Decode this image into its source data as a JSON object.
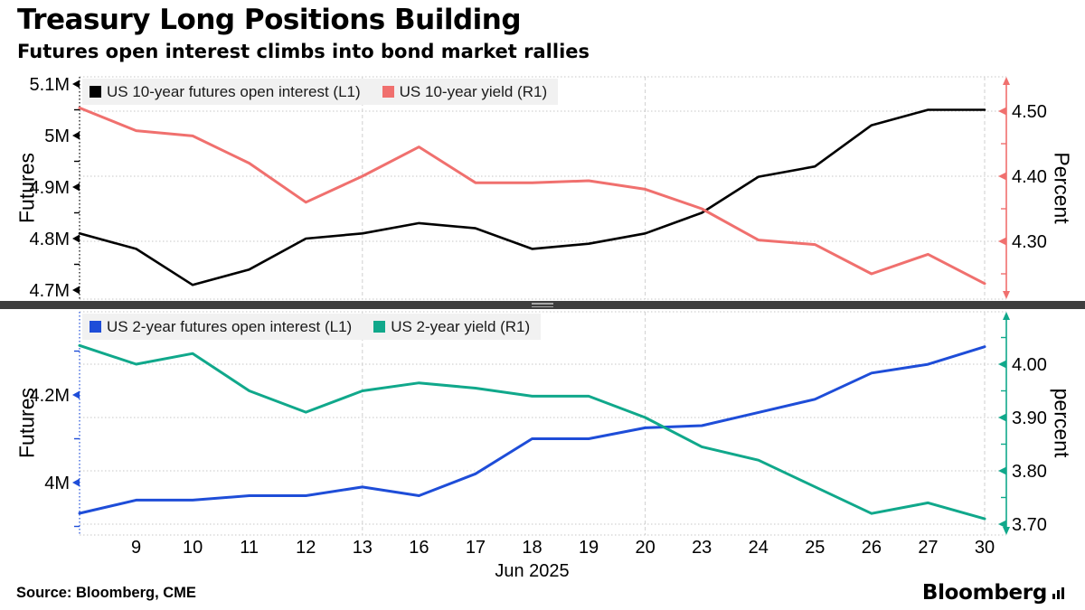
{
  "header": {
    "title": "Treasury Long Positions Building",
    "subtitle": "Futures open interest climbs into bond market rallies"
  },
  "footer": {
    "source": "Source: Bloomberg, CME",
    "brand": "Bloomberg"
  },
  "colors": {
    "oi_10y": "#000000",
    "yield_10y": "#f0706e",
    "oi_2y": "#1e4dd8",
    "yield_2y": "#10a88b",
    "legend_bg": "#f1f1f1",
    "grid": "#c7c7c7",
    "divider": "#3e3e3e"
  },
  "chart_data": [
    {
      "type": "line",
      "panel": "top",
      "x": [
        6,
        9,
        10,
        11,
        12,
        13,
        16,
        17,
        18,
        19,
        20,
        23,
        24,
        25,
        26,
        27,
        30
      ],
      "series": [
        {
          "name": "US 10-year futures open interest (L1)",
          "axis": "L1",
          "color": "#000000",
          "values": [
            4.81,
            4.78,
            4.71,
            4.74,
            4.8,
            4.81,
            4.83,
            4.82,
            4.78,
            4.79,
            4.81,
            4.85,
            4.92,
            4.94,
            5.02,
            5.05,
            5.05
          ]
        },
        {
          "name": "US 10-year yield (R1)",
          "axis": "R1",
          "color": "#f0706e",
          "values": [
            4.505,
            4.47,
            4.462,
            4.42,
            4.36,
            4.4,
            4.445,
            4.39,
            4.39,
            4.393,
            4.38,
            4.35,
            4.302,
            4.295,
            4.25,
            4.28,
            4.235
          ]
        }
      ],
      "left_axis": {
        "title": "Futures",
        "range": [
          4.68,
          5.11
        ],
        "major_ticks": [
          {
            "value": 5.1,
            "label": "5.1M"
          },
          {
            "value": 5.0,
            "label": "5M"
          },
          {
            "value": 4.9,
            "label": "4.9M"
          },
          {
            "value": 4.8,
            "label": "4.8M"
          },
          {
            "value": 4.7,
            "label": "4.7M"
          }
        ],
        "minor_ticks": [
          5.05,
          4.95,
          4.85,
          4.75
        ]
      },
      "right_axis": {
        "title": "Percent",
        "range": [
          4.21,
          4.55
        ],
        "major_ticks": [
          {
            "value": 4.5,
            "label": "4.50"
          },
          {
            "value": 4.4,
            "label": "4.40"
          },
          {
            "value": 4.3,
            "label": "4.30"
          }
        ],
        "minor_ticks": [
          4.45,
          4.35,
          4.25
        ]
      },
      "grid": "horizontal dotted on right-axis majors, vertical dashed at Jun 13, Jun 20 and last point"
    },
    {
      "type": "line",
      "panel": "bottom",
      "x": [
        6,
        9,
        10,
        11,
        12,
        13,
        16,
        17,
        18,
        19,
        20,
        23,
        24,
        25,
        26,
        27,
        30
      ],
      "x_tick_labels": [
        "9",
        "10",
        "11",
        "12",
        "13",
        "16",
        "17",
        "18",
        "19",
        "20",
        "23",
        "24",
        "25",
        "26",
        "27",
        "30"
      ],
      "xlabel": "Jun 2025",
      "series": [
        {
          "name": "US 2-year futures open interest (L1)",
          "axis": "L1",
          "color": "#1e4dd8",
          "values": [
            3.93,
            3.96,
            3.96,
            3.97,
            3.97,
            3.99,
            3.97,
            4.02,
            4.1,
            4.1,
            4.125,
            4.13,
            4.16,
            4.19,
            4.25,
            4.27,
            4.31
          ]
        },
        {
          "name": "US 2-year yield (R1)",
          "axis": "R1",
          "color": "#10a88b",
          "values": [
            4.035,
            4.0,
            4.02,
            3.95,
            3.91,
            3.95,
            3.965,
            3.955,
            3.94,
            3.94,
            3.9,
            3.845,
            3.82,
            3.77,
            3.72,
            3.74,
            3.71
          ]
        }
      ],
      "left_axis": {
        "title": "Futures",
        "range": [
          3.88,
          4.39
        ],
        "major_ticks": [
          {
            "value": 4.2,
            "label": "4.2M"
          },
          {
            "value": 4.0,
            "label": "4M"
          }
        ],
        "minor_ticks": [
          4.3,
          4.1,
          3.9
        ]
      },
      "right_axis": {
        "title": "percent",
        "range": [
          3.68,
          4.1
        ],
        "major_ticks": [
          {
            "value": 4.0,
            "label": "4.00"
          },
          {
            "value": 3.9,
            "label": "3.90"
          },
          {
            "value": 3.8,
            "label": "3.80"
          },
          {
            "value": 3.7,
            "label": "3.70"
          }
        ],
        "minor_ticks": [
          4.05,
          3.95,
          3.85,
          3.75
        ]
      },
      "grid": "horizontal dotted on right-axis majors, vertical dashed at Jun 13, Jun 20 and last point"
    }
  ]
}
